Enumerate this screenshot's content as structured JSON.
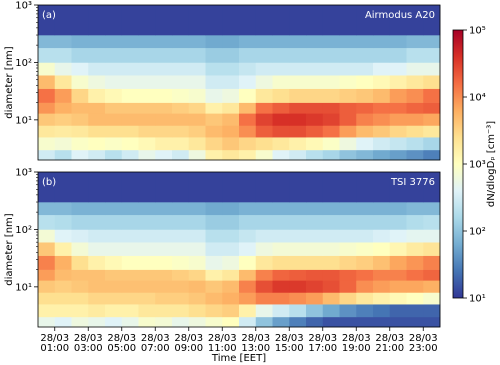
{
  "chart_data": [
    {
      "type": "heatmap",
      "annotation": "(a)",
      "instrument": "Airmodus A20",
      "ylabel": "diameter [nm]",
      "x_bins": [
        0,
        1,
        2,
        3,
        4,
        5,
        6,
        7,
        8,
        9,
        10,
        11,
        12,
        13,
        14,
        15,
        16,
        17,
        18,
        19,
        20,
        21,
        22,
        23,
        24
      ],
      "y_bins": [
        2,
        3,
        5,
        8,
        13,
        20,
        35,
        60,
        100,
        180,
        300,
        1000
      ],
      "xlim": [
        0,
        24
      ],
      "ylim": [
        2,
        1000
      ],
      "log_y": true,
      "yticks": [
        {
          "value": 10,
          "label": "10¹"
        },
        {
          "value": 100,
          "label": "10²"
        },
        {
          "value": 1000,
          "label": "10³"
        }
      ],
      "z": [
        [
          300,
          200,
          400,
          300,
          200,
          300,
          500,
          400,
          300,
          600,
          1500,
          2000,
          1500,
          800,
          400,
          300,
          200,
          150,
          100,
          80,
          60,
          50,
          40,
          30
        ],
        [
          800,
          700,
          900,
          1000,
          900,
          1000,
          1200,
          1500,
          1500,
          2000,
          3000,
          4000,
          3000,
          2500,
          2000,
          1500,
          1200,
          900,
          600,
          400,
          300,
          250,
          200,
          150
        ],
        [
          2000,
          1800,
          2000,
          2500,
          2500,
          2500,
          3000,
          3000,
          3000,
          3500,
          5000,
          6000,
          10000,
          20000,
          25000,
          25000,
          20000,
          15000,
          8000,
          5000,
          4000,
          3000,
          2500,
          2000
        ],
        [
          4000,
          3500,
          4000,
          5000,
          5000,
          5000,
          5000,
          5000,
          5000,
          5000,
          4000,
          5000,
          15000,
          30000,
          40000,
          40000,
          35000,
          30000,
          20000,
          12000,
          10000,
          8000,
          8000,
          7000
        ],
        [
          9000,
          6000,
          5000,
          5000,
          4000,
          4000,
          4000,
          4000,
          3500,
          3000,
          1500,
          2000,
          5000,
          15000,
          20000,
          25000,
          25000,
          25000,
          20000,
          18000,
          15000,
          15000,
          18000,
          20000
        ],
        [
          15000,
          8000,
          3000,
          1500,
          1200,
          1000,
          1000,
          1000,
          900,
          800,
          500,
          600,
          1000,
          2000,
          2500,
          3000,
          3000,
          3000,
          3500,
          4000,
          5000,
          8000,
          10000,
          15000
        ],
        [
          5000,
          2000,
          800,
          600,
          500,
          500,
          500,
          500,
          500,
          500,
          300,
          300,
          400,
          600,
          800,
          800,
          800,
          800,
          900,
          1000,
          1200,
          1500,
          2000,
          2500
        ],
        [
          800,
          500,
          400,
          300,
          300,
          300,
          300,
          300,
          300,
          300,
          200,
          200,
          250,
          300,
          300,
          300,
          300,
          300,
          300,
          300,
          400,
          400,
          500,
          500
        ],
        [
          200,
          200,
          150,
          150,
          150,
          150,
          150,
          150,
          150,
          150,
          120,
          120,
          150,
          150,
          150,
          150,
          150,
          150,
          150,
          150,
          150,
          150,
          200,
          200
        ],
        [
          80,
          80,
          70,
          70,
          70,
          70,
          70,
          70,
          70,
          70,
          60,
          60,
          70,
          70,
          70,
          70,
          70,
          70,
          70,
          70,
          70,
          70,
          80,
          80
        ],
        [
          12,
          12,
          12,
          12,
          12,
          12,
          12,
          12,
          12,
          12,
          12,
          12,
          12,
          12,
          12,
          12,
          12,
          12,
          12,
          12,
          12,
          12,
          12,
          12
        ]
      ]
    },
    {
      "type": "heatmap",
      "annotation": "(b)",
      "instrument": "TSI 3776",
      "ylabel": "diameter [nm]",
      "xlabel": "Time [EET]",
      "x_bins": [
        0,
        1,
        2,
        3,
        4,
        5,
        6,
        7,
        8,
        9,
        10,
        11,
        12,
        13,
        14,
        15,
        16,
        17,
        18,
        19,
        20,
        21,
        22,
        23,
        24
      ],
      "y_bins": [
        2,
        3,
        5,
        8,
        13,
        20,
        35,
        60,
        100,
        180,
        300,
        1000
      ],
      "xlim": [
        0,
        24
      ],
      "ylim": [
        2,
        1000
      ],
      "log_y": true,
      "yticks": [
        {
          "value": 10,
          "label": "10¹"
        },
        {
          "value": 100,
          "label": "10²"
        },
        {
          "value": 1000,
          "label": "10³"
        }
      ],
      "xticks": [
        {
          "value": 1,
          "label": "28/03 01:00"
        },
        {
          "value": 3,
          "label": "28/03 03:00"
        },
        {
          "value": 5,
          "label": "28/03 05:00"
        },
        {
          "value": 7,
          "label": "28/03 07:00"
        },
        {
          "value": 9,
          "label": "28/03 09:00"
        },
        {
          "value": 11,
          "label": "28/03 11:00"
        },
        {
          "value": 13,
          "label": "28/03 13:00"
        },
        {
          "value": 15,
          "label": "28/03 15:00"
        },
        {
          "value": 17,
          "label": "28/03 17:00"
        },
        {
          "value": 19,
          "label": "28/03 19:00"
        },
        {
          "value": 21,
          "label": "28/03 21:00"
        },
        {
          "value": 23,
          "label": "28/03 23:00"
        }
      ],
      "z": [
        [
          500,
          400,
          600,
          500,
          400,
          500,
          800,
          700,
          500,
          600,
          800,
          1000,
          300,
          100,
          50,
          30,
          20,
          15,
          15,
          15,
          15,
          15,
          15,
          15
        ],
        [
          1500,
          1500,
          1500,
          1800,
          1500,
          1500,
          2000,
          2000,
          2000,
          2500,
          3000,
          3500,
          1500,
          500,
          300,
          200,
          100,
          60,
          40,
          30,
          25,
          20,
          20,
          20
        ],
        [
          2500,
          2500,
          2500,
          3000,
          3000,
          3000,
          3000,
          3500,
          3500,
          4000,
          5000,
          6000,
          8000,
          12000,
          12000,
          10000,
          8000,
          5000,
          3000,
          2000,
          1500,
          1200,
          1000,
          800
        ],
        [
          4000,
          3500,
          4000,
          4500,
          4500,
          4500,
          4500,
          4500,
          4500,
          5000,
          4000,
          5000,
          12000,
          25000,
          35000,
          35000,
          30000,
          25000,
          18000,
          10000,
          8000,
          7000,
          7000,
          6000
        ],
        [
          8000,
          5000,
          4500,
          4500,
          4000,
          4000,
          4000,
          4000,
          3500,
          3000,
          1500,
          2000,
          5000,
          12000,
          18000,
          20000,
          22000,
          22000,
          18000,
          15000,
          12000,
          12000,
          15000,
          18000
        ],
        [
          12000,
          6000,
          2500,
          1500,
          1200,
          1000,
          1000,
          1000,
          900,
          800,
          500,
          600,
          1000,
          2000,
          2500,
          2500,
          2500,
          2500,
          3000,
          3500,
          4500,
          7000,
          9000,
          12000
        ],
        [
          4000,
          1500,
          700,
          500,
          500,
          500,
          500,
          500,
          500,
          500,
          300,
          300,
          400,
          600,
          700,
          700,
          700,
          700,
          800,
          900,
          1000,
          1300,
          1800,
          2200
        ],
        [
          700,
          400,
          350,
          300,
          300,
          300,
          300,
          300,
          300,
          300,
          200,
          200,
          250,
          300,
          300,
          300,
          300,
          300,
          300,
          300,
          350,
          400,
          450,
          450
        ],
        [
          200,
          180,
          150,
          150,
          150,
          150,
          150,
          150,
          150,
          150,
          120,
          120,
          150,
          150,
          150,
          150,
          150,
          150,
          150,
          150,
          150,
          150,
          180,
          200
        ],
        [
          80,
          80,
          70,
          70,
          70,
          70,
          70,
          70,
          70,
          70,
          60,
          60,
          70,
          70,
          70,
          70,
          70,
          70,
          70,
          70,
          70,
          70,
          80,
          80
        ],
        [
          12,
          12,
          12,
          12,
          12,
          12,
          12,
          12,
          12,
          12,
          12,
          12,
          12,
          12,
          12,
          12,
          12,
          12,
          12,
          12,
          12,
          12,
          12,
          12
        ]
      ]
    }
  ],
  "colorbar": {
    "label": "dN/dlogDₚ [cm⁻³]",
    "lim": [
      10,
      100000
    ],
    "log": true,
    "colors": [
      "#313695",
      "#4575b4",
      "#74add1",
      "#abd9e9",
      "#e0f3f8",
      "#ffffbf",
      "#fee090",
      "#fdae61",
      "#f46d43",
      "#d73027",
      "#a50026"
    ],
    "ticks": [
      {
        "value": 10,
        "label": "10¹"
      },
      {
        "value": 100,
        "label": "10²"
      },
      {
        "value": 1000,
        "label": "10³"
      },
      {
        "value": 10000,
        "label": "10⁴"
      },
      {
        "value": 100000,
        "label": "10⁵"
      }
    ]
  }
}
